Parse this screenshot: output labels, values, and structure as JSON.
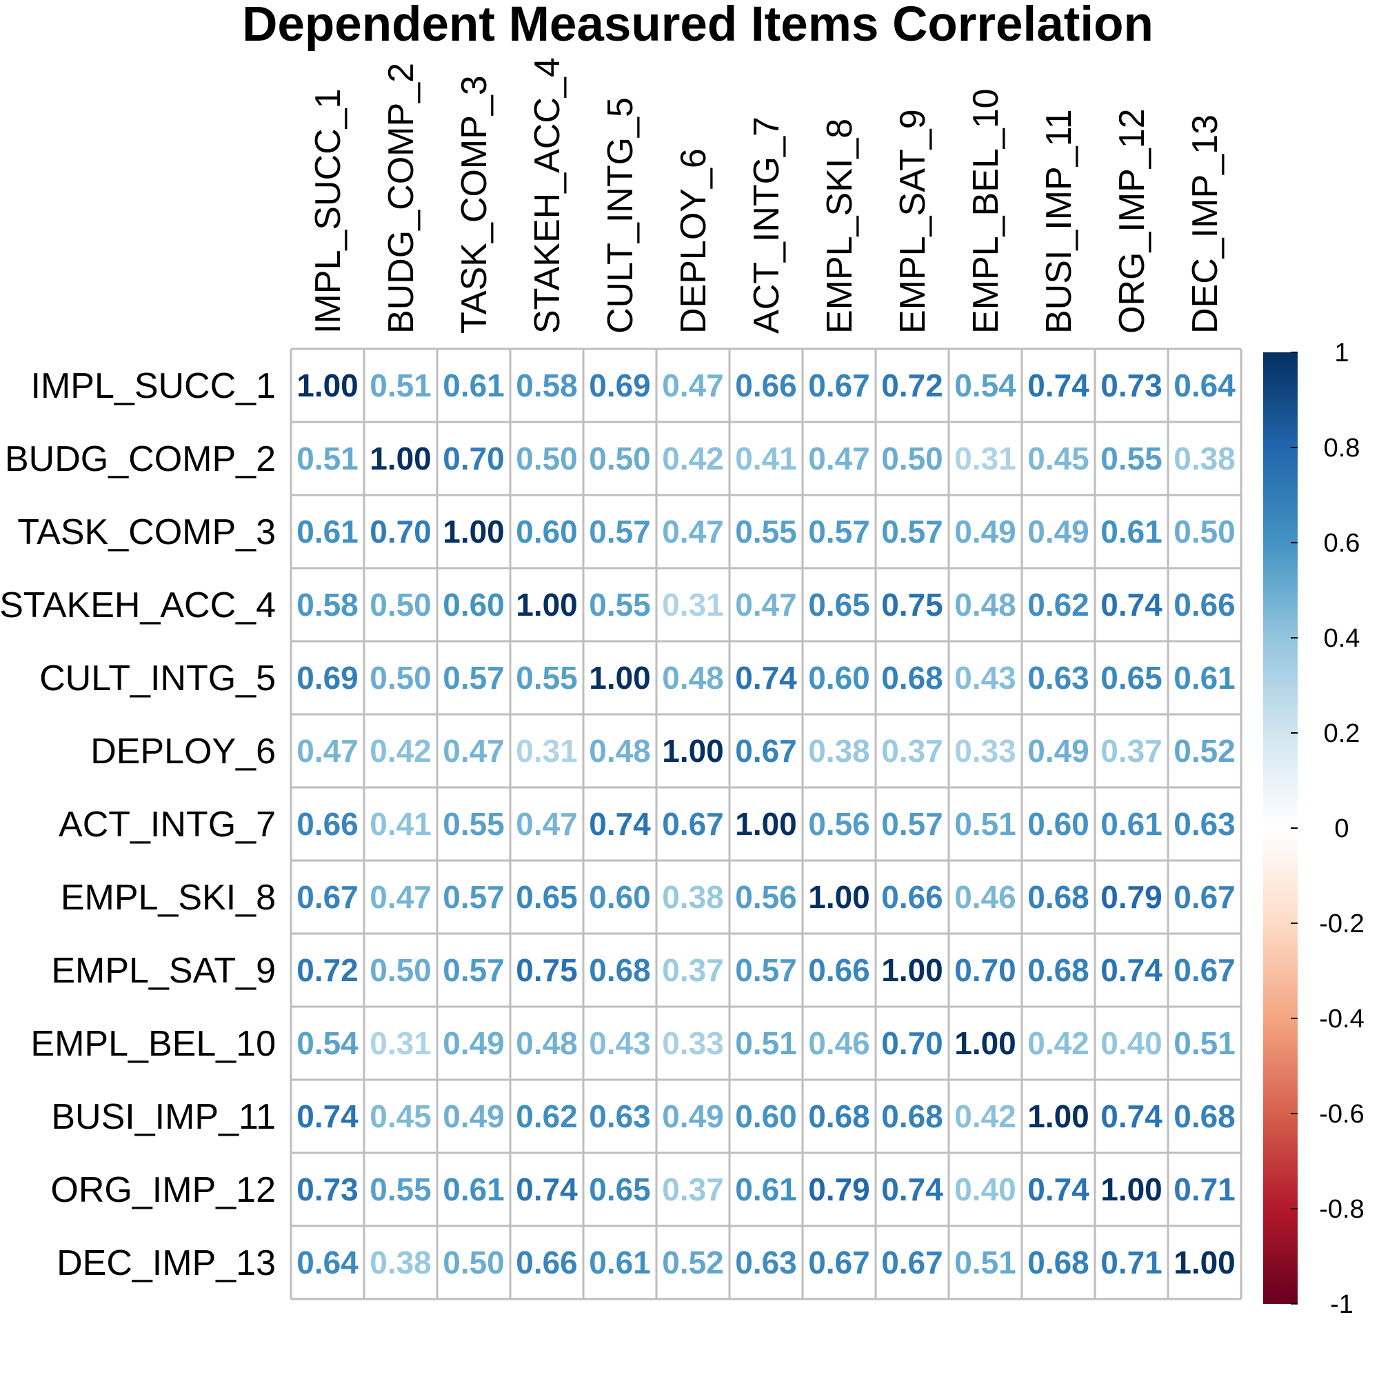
{
  "chart_data": {
    "type": "heatmap",
    "title": "Dependent Measured Items Correlation",
    "labels": [
      "IMPL_SUCC_1",
      "BUDG_COMP_2",
      "TASK_COMP_3",
      "STAKEH_ACC_4",
      "CULT_INTG_5",
      "DEPLOY_6",
      "ACT_INTG_7",
      "EMPL_SKI_8",
      "EMPL_SAT_9",
      "EMPL_BEL_10",
      "BUSI_IMP_11",
      "ORG_IMP_12",
      "DEC_IMP_13"
    ],
    "matrix": [
      [
        1.0,
        0.51,
        0.61,
        0.58,
        0.69,
        0.47,
        0.66,
        0.67,
        0.72,
        0.54,
        0.74,
        0.73,
        0.64
      ],
      [
        0.51,
        1.0,
        0.7,
        0.5,
        0.5,
        0.42,
        0.41,
        0.47,
        0.5,
        0.31,
        0.45,
        0.55,
        0.38
      ],
      [
        0.61,
        0.7,
        1.0,
        0.6,
        0.57,
        0.47,
        0.55,
        0.57,
        0.57,
        0.49,
        0.49,
        0.61,
        0.5
      ],
      [
        0.58,
        0.5,
        0.6,
        1.0,
        0.55,
        0.31,
        0.47,
        0.65,
        0.75,
        0.48,
        0.62,
        0.74,
        0.66
      ],
      [
        0.69,
        0.5,
        0.57,
        0.55,
        1.0,
        0.48,
        0.74,
        0.6,
        0.68,
        0.43,
        0.63,
        0.65,
        0.61
      ],
      [
        0.47,
        0.42,
        0.47,
        0.31,
        0.48,
        1.0,
        0.67,
        0.38,
        0.37,
        0.33,
        0.49,
        0.37,
        0.52
      ],
      [
        0.66,
        0.41,
        0.55,
        0.47,
        0.74,
        0.67,
        1.0,
        0.56,
        0.57,
        0.51,
        0.6,
        0.61,
        0.63
      ],
      [
        0.67,
        0.47,
        0.57,
        0.65,
        0.6,
        0.38,
        0.56,
        1.0,
        0.66,
        0.46,
        0.68,
        0.79,
        0.67
      ],
      [
        0.72,
        0.5,
        0.57,
        0.75,
        0.68,
        0.37,
        0.57,
        0.66,
        1.0,
        0.7,
        0.68,
        0.74,
        0.67
      ],
      [
        0.54,
        0.31,
        0.49,
        0.48,
        0.43,
        0.33,
        0.51,
        0.46,
        0.7,
        1.0,
        0.42,
        0.4,
        0.51
      ],
      [
        0.74,
        0.45,
        0.49,
        0.62,
        0.63,
        0.49,
        0.6,
        0.68,
        0.68,
        0.42,
        1.0,
        0.74,
        0.68
      ],
      [
        0.73,
        0.55,
        0.61,
        0.74,
        0.65,
        0.37,
        0.61,
        0.79,
        0.74,
        0.4,
        0.74,
        1.0,
        0.71
      ],
      [
        0.64,
        0.38,
        0.5,
        0.66,
        0.61,
        0.52,
        0.63,
        0.67,
        0.67,
        0.51,
        0.68,
        0.71,
        1.0
      ]
    ],
    "value_format": "2 decimals",
    "color_scale": {
      "range": [
        -1,
        1
      ],
      "ticks": [
        "1",
        "0.8",
        "0.6",
        "0.4",
        "0.2",
        "0",
        "-0.2",
        "-0.4",
        "-0.6",
        "-0.8",
        "-1"
      ],
      "colors": [
        "#67001F",
        "#B2182B",
        "#D6604D",
        "#F4A582",
        "#FDDBC7",
        "#FFFFFF",
        "#D1E5F0",
        "#92C5DE",
        "#4393C3",
        "#2166AC",
        "#053061"
      ]
    },
    "grid_color": "#BEBEBE",
    "legend_position": "right"
  }
}
